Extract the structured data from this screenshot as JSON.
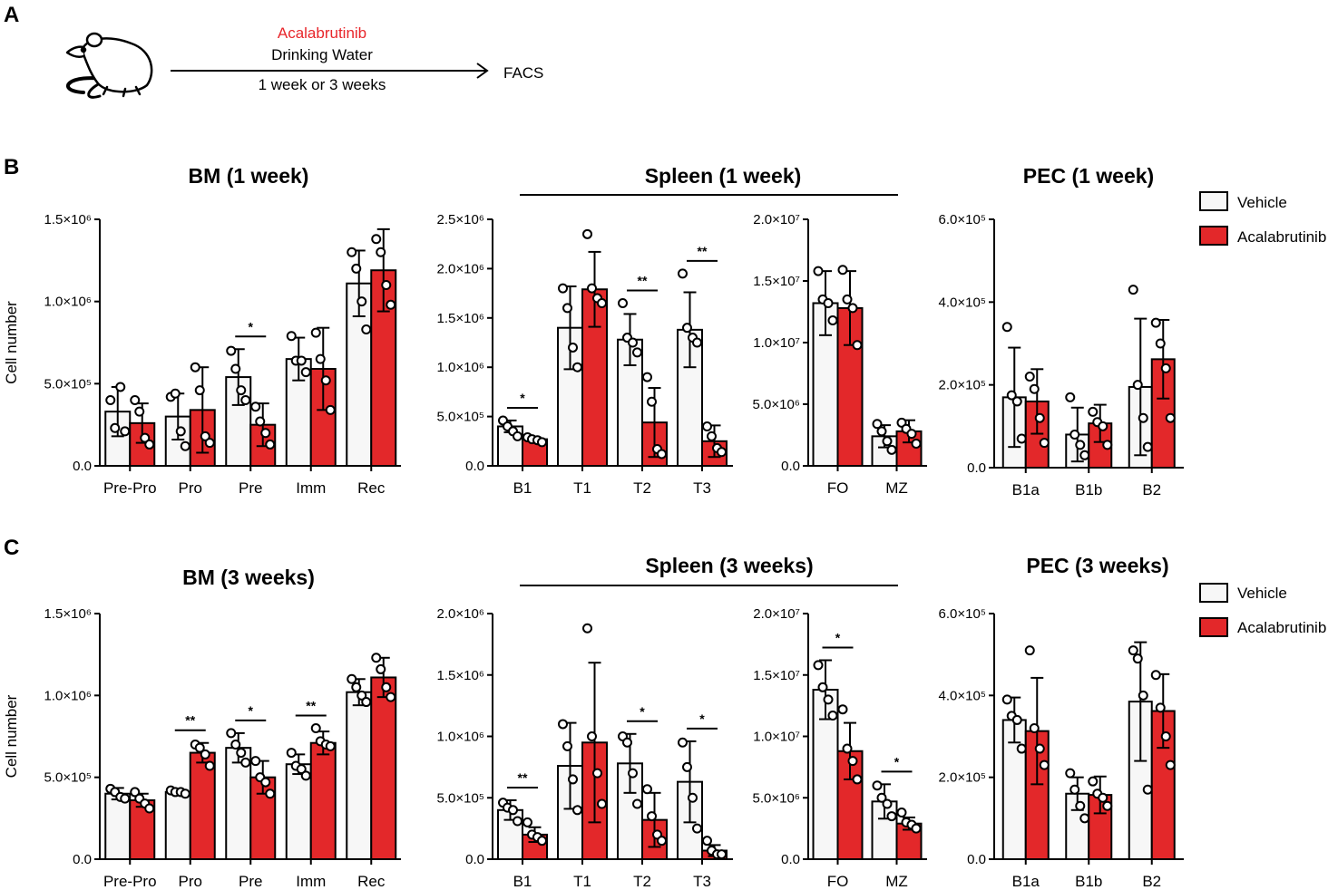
{
  "panels": {
    "a": "A",
    "b": "B",
    "c": "C"
  },
  "schematic": {
    "drug": "Acalabrutinib",
    "route": "Drinking Water",
    "duration": "1 week or 3 weeks",
    "readout": "FACS",
    "mouse_icon": "mouse-icon",
    "drug_color": "#e8262b"
  },
  "legend": {
    "vehicle": "Vehicle",
    "acalabrutinib": "Acalabrutinib"
  },
  "colors": {
    "vehicle_fill": "#f7f7f7",
    "acalabrutinib_fill": "#e3282a",
    "stroke": "#000000"
  },
  "group_titles": {
    "spleen_1w": "Spleen (1 week)",
    "spleen_3w": "Spleen (3 weeks)"
  },
  "chart_data": [
    {
      "id": "bm1",
      "type": "bar",
      "title": "BM (1 week)",
      "ylabel": "Cell number",
      "categories": [
        "Pre-Pro",
        "Pro",
        "Pre",
        "Imm",
        "Rec"
      ],
      "ylim": [
        0,
        1500000
      ],
      "yticks": [
        {
          "value": 0,
          "label": "0.0"
        },
        {
          "value": 500000,
          "label": "5.0×10⁵"
        },
        {
          "value": 1000000,
          "label": "1.0×10⁶"
        },
        {
          "value": 1500000,
          "label": "1.5×10⁶"
        }
      ],
      "series": [
        {
          "name": "Vehicle",
          "values": [
            330000,
            300000,
            540000,
            650000,
            1110000
          ],
          "sd": [
            150000,
            140000,
            170000,
            130000,
            200000
          ],
          "points": [
            [
              400000,
              230000,
              480000,
              210000
            ],
            [
              420000,
              440000,
              210000,
              120000
            ],
            [
              700000,
              590000,
              460000,
              400000
            ],
            [
              790000,
              640000,
              640000,
              570000
            ],
            [
              1300000,
              1200000,
              1000000,
              830000
            ]
          ]
        },
        {
          "name": "Acalabrutinib",
          "values": [
            260000,
            340000,
            250000,
            590000,
            1190000
          ],
          "sd": [
            120000,
            260000,
            130000,
            250000,
            250000
          ],
          "points": [
            [
              400000,
              330000,
              170000,
              130000
            ],
            [
              600000,
              460000,
              180000,
              140000
            ],
            [
              360000,
              270000,
              200000,
              130000
            ],
            [
              810000,
              650000,
              520000,
              340000
            ],
            [
              1380000,
              1300000,
              1100000,
              980000
            ]
          ]
        }
      ],
      "significance": [
        {
          "index": 2,
          "label": "*"
        }
      ]
    },
    {
      "id": "spl1a",
      "type": "bar",
      "title": "",
      "ylabel": "",
      "categories": [
        "B1",
        "T1",
        "T2",
        "T3"
      ],
      "ylim": [
        0,
        2500000
      ],
      "yticks": [
        {
          "value": 0,
          "label": "0.0"
        },
        {
          "value": 500000,
          "label": "5.0×10⁵"
        },
        {
          "value": 1000000,
          "label": "1.0×10⁶"
        },
        {
          "value": 1500000,
          "label": "1.5×10⁶"
        },
        {
          "value": 2000000,
          "label": "2.0×10⁶"
        },
        {
          "value": 2500000,
          "label": "2.5×10⁶"
        }
      ],
      "series": [
        {
          "name": "Vehicle",
          "values": [
            400000,
            1400000,
            1280000,
            1380000
          ],
          "sd": [
            60000,
            420000,
            260000,
            380000
          ],
          "points": [
            [
              460000,
              400000,
              350000,
              300000
            ],
            [
              1800000,
              1600000,
              1200000,
              1000000
            ],
            [
              1650000,
              1300000,
              1250000,
              1150000
            ],
            [
              1950000,
              1400000,
              1300000,
              1250000
            ]
          ]
        },
        {
          "name": "Acalabrutinib",
          "values": [
            270000,
            1790000,
            440000,
            250000
          ],
          "sd": [
            20000,
            380000,
            350000,
            160000
          ],
          "points": [
            [
              290000,
              270000,
              260000,
              240000
            ],
            [
              2350000,
              1800000,
              1700000,
              1650000
            ],
            [
              900000,
              650000,
              170000,
              120000
            ],
            [
              400000,
              300000,
              180000,
              140000
            ]
          ]
        }
      ],
      "significance": [
        {
          "index": 0,
          "label": "*"
        },
        {
          "index": 2,
          "label": "**"
        },
        {
          "index": 3,
          "label": "**"
        }
      ]
    },
    {
      "id": "spl1b",
      "type": "bar",
      "title": "",
      "ylabel": "",
      "categories": [
        "FO",
        "MZ"
      ],
      "ylim": [
        0,
        20000000
      ],
      "yticks": [
        {
          "value": 0,
          "label": "0.0"
        },
        {
          "value": 5000000,
          "label": "5.0×10⁶"
        },
        {
          "value": 10000000,
          "label": "1.0×10⁷"
        },
        {
          "value": 15000000,
          "label": "1.5×10⁷"
        },
        {
          "value": 20000000,
          "label": "2.0×10⁷"
        }
      ],
      "series": [
        {
          "name": "Vehicle",
          "values": [
            13200000,
            2400000
          ],
          "sd": [
            2600000,
            900000
          ],
          "points": [
            [
              15800000,
              13500000,
              13200000,
              11800000
            ],
            [
              3400000,
              2800000,
              2000000,
              1300000
            ]
          ]
        },
        {
          "name": "Acalabrutinib",
          "values": [
            12800000,
            2800000
          ],
          "sd": [
            3000000,
            900000
          ],
          "points": [
            [
              15900000,
              13500000,
              12800000,
              9800000
            ],
            [
              3500000,
              3000000,
              2600000,
              1800000
            ]
          ]
        }
      ],
      "significance": []
    },
    {
      "id": "pec1",
      "type": "bar",
      "title": "PEC (1 week)",
      "ylabel": "",
      "categories": [
        "B1a",
        "B1b",
        "B2"
      ],
      "ylim": [
        0,
        600000
      ],
      "yticks": [
        {
          "value": 0,
          "label": "0.0"
        },
        {
          "value": 200000,
          "label": "2.0×10⁵"
        },
        {
          "value": 400000,
          "label": "4.0×10⁵"
        },
        {
          "value": 600000,
          "label": "6.0×10⁵"
        }
      ],
      "series": [
        {
          "name": "Vehicle",
          "values": [
            170000,
            80000,
            195000
          ],
          "sd": [
            120000,
            65000,
            165000
          ],
          "points": [
            [
              340000,
              175000,
              160000,
              70000
            ],
            [
              170000,
              80000,
              55000,
              30000
            ],
            [
              430000,
              200000,
              120000,
              50000
            ]
          ]
        },
        {
          "name": "Acalabrutinib",
          "values": [
            160000,
            107000,
            262000
          ],
          "sd": [
            78000,
            45000,
            95000
          ],
          "points": [
            [
              220000,
              190000,
              120000,
              60000
            ],
            [
              135000,
              110000,
              100000,
              55000
            ],
            [
              350000,
              300000,
              240000,
              120000
            ]
          ]
        }
      ],
      "significance": []
    },
    {
      "id": "bm3",
      "type": "bar",
      "title": "BM (3 weeks)",
      "ylabel": "Cell number",
      "categories": [
        "Pre-Pro",
        "Pro",
        "Pre",
        "Imm",
        "Rec"
      ],
      "ylim": [
        0,
        1500000
      ],
      "yticks": [
        {
          "value": 0,
          "label": "0.0"
        },
        {
          "value": 500000,
          "label": "5.0×10⁵"
        },
        {
          "value": 1000000,
          "label": "1.0×10⁶"
        },
        {
          "value": 1500000,
          "label": "1.5×10⁶"
        }
      ],
      "series": [
        {
          "name": "Vehicle",
          "values": [
            400000,
            410000,
            680000,
            580000,
            1020000
          ],
          "sd": [
            35000,
            15000,
            90000,
            60000,
            80000
          ],
          "points": [
            [
              430000,
              410000,
              380000,
              370000
            ],
            [
              420000,
              410000,
              410000,
              400000
            ],
            [
              770000,
              700000,
              650000,
              590000
            ],
            [
              650000,
              570000,
              550000,
              510000
            ],
            [
              1100000,
              1050000,
              1000000,
              960000
            ]
          ]
        },
        {
          "name": "Acalabrutinib",
          "values": [
            360000,
            650000,
            500000,
            710000,
            1110000
          ],
          "sd": [
            40000,
            60000,
            100000,
            70000,
            120000
          ],
          "points": [
            [
              410000,
              370000,
              340000,
              310000
            ],
            [
              700000,
              680000,
              640000,
              570000
            ],
            [
              600000,
              500000,
              470000,
              400000
            ],
            [
              800000,
              720000,
              700000,
              690000
            ],
            [
              1230000,
              1160000,
              1050000,
              990000
            ]
          ]
        }
      ],
      "significance": [
        {
          "index": 1,
          "label": "**"
        },
        {
          "index": 2,
          "label": "*"
        },
        {
          "index": 3,
          "label": "**"
        }
      ]
    },
    {
      "id": "spl3a",
      "type": "bar",
      "title": "",
      "ylabel": "",
      "categories": [
        "B1",
        "T1",
        "T2",
        "T3"
      ],
      "ylim": [
        0,
        2000000
      ],
      "yticks": [
        {
          "value": 0,
          "label": "0.0"
        },
        {
          "value": 500000,
          "label": "5.0×10⁵"
        },
        {
          "value": 1000000,
          "label": "1.0×10⁶"
        },
        {
          "value": 1500000,
          "label": "1.5×10⁶"
        },
        {
          "value": 2000000,
          "label": "2.0×10⁶"
        }
      ],
      "series": [
        {
          "name": "Vehicle",
          "values": [
            400000,
            760000,
            780000,
            630000
          ],
          "sd": [
            80000,
            350000,
            240000,
            330000
          ],
          "points": [
            [
              460000,
              420000,
              400000,
              310000
            ],
            [
              1100000,
              920000,
              650000,
              400000
            ],
            [
              1000000,
              950000,
              700000,
              450000
            ],
            [
              950000,
              750000,
              500000,
              250000
            ]
          ]
        },
        {
          "name": "Acalabrutinib",
          "values": [
            200000,
            950000,
            320000,
            70000
          ],
          "sd": [
            60000,
            650000,
            220000,
            45000
          ],
          "points": [
            [
              300000,
              200000,
              180000,
              150000
            ],
            [
              1880000,
              1000000,
              700000,
              450000
            ],
            [
              570000,
              350000,
              200000,
              150000
            ],
            [
              150000,
              70000,
              40000,
              40000
            ]
          ]
        }
      ],
      "significance": [
        {
          "index": 0,
          "label": "**"
        },
        {
          "index": 2,
          "label": "*"
        },
        {
          "index": 3,
          "label": "*"
        }
      ]
    },
    {
      "id": "spl3b",
      "type": "bar",
      "title": "",
      "ylabel": "",
      "categories": [
        "FO",
        "MZ"
      ],
      "ylim": [
        0,
        20000000
      ],
      "yticks": [
        {
          "value": 0,
          "label": "0.0"
        },
        {
          "value": 5000000,
          "label": "5.0×10⁶"
        },
        {
          "value": 10000000,
          "label": "1.0×10⁷"
        },
        {
          "value": 15000000,
          "label": "1.5×10⁷"
        },
        {
          "value": 20000000,
          "label": "2.0×10⁷"
        }
      ],
      "series": [
        {
          "name": "Vehicle",
          "values": [
            13800000,
            4700000
          ],
          "sd": [
            2400000,
            1400000
          ],
          "points": [
            [
              15800000,
              14000000,
              13000000,
              11700000
            ],
            [
              6000000,
              5000000,
              4500000,
              3500000
            ]
          ]
        },
        {
          "name": "Acalabrutinib",
          "values": [
            8800000,
            2900000
          ],
          "sd": [
            2300000,
            500000
          ],
          "points": [
            [
              12200000,
              9000000,
              8000000,
              6500000
            ],
            [
              3800000,
              3000000,
              2800000,
              2500000
            ]
          ]
        }
      ],
      "significance": [
        {
          "index": 0,
          "label": "*"
        },
        {
          "index": 1,
          "label": "*"
        }
      ]
    },
    {
      "id": "pec3",
      "type": "bar",
      "title": "PEC (3 weeks)",
      "ylabel": "",
      "categories": [
        "B1a",
        "B1b",
        "B2"
      ],
      "ylim": [
        0,
        600000
      ],
      "yticks": [
        {
          "value": 0,
          "label": "0.0"
        },
        {
          "value": 200000,
          "label": "2.0×10⁵"
        },
        {
          "value": 400000,
          "label": "4.0×10⁵"
        },
        {
          "value": 600000,
          "label": "6.0×10⁵"
        }
      ],
      "series": [
        {
          "name": "Vehicle",
          "values": [
            340000,
            160000,
            385000
          ],
          "sd": [
            55000,
            40000,
            145000
          ],
          "points": [
            [
              390000,
              350000,
              340000,
              270000
            ],
            [
              210000,
              170000,
              130000,
              100000
            ],
            [
              510000,
              490000,
              400000,
              170000
            ]
          ]
        },
        {
          "name": "Acalabrutinib",
          "values": [
            313000,
            157000,
            362000
          ],
          "sd": [
            130000,
            45000,
            90000
          ],
          "points": [
            [
              510000,
              320000,
              270000,
              230000
            ],
            [
              190000,
              160000,
              150000,
              130000
            ],
            [
              450000,
              370000,
              300000,
              230000
            ]
          ]
        }
      ],
      "significance": []
    }
  ]
}
